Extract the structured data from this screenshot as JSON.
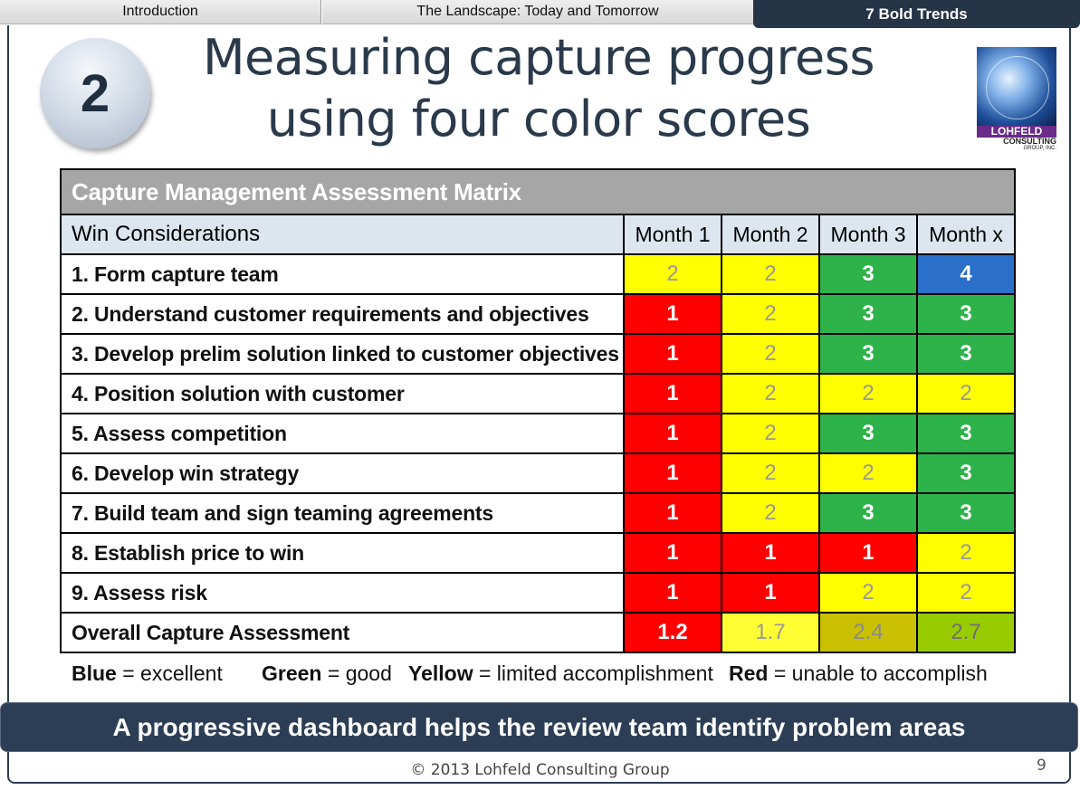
{
  "tabs": [
    {
      "label": "Introduction"
    },
    {
      "label": "The Landscape: Today and Tomorrow"
    },
    {
      "label": "7 Bold Trends"
    }
  ],
  "badge_number": "2",
  "title_line1": "Measuring capture progress",
  "title_line2": "using four color scores",
  "logo": {
    "name": "LOHFELD",
    "sub": "CONSULTING",
    "sub2": "GROUP, INC."
  },
  "matrix": {
    "title": "Capture Management Assessment Matrix",
    "header": {
      "label": "Win Considerations",
      "months": [
        "Month 1",
        "Month 2",
        "Month 3",
        "Month x"
      ]
    },
    "rows": [
      {
        "label": "1.  Form capture team",
        "scores": [
          "2",
          "2",
          "3",
          "4"
        ]
      },
      {
        "label": "2.  Understand customer requirements and objectives",
        "scores": [
          "1",
          "2",
          "3",
          "3"
        ]
      },
      {
        "label": "3.  Develop prelim solution linked to customer objectives",
        "scores": [
          "1",
          "2",
          "3",
          "3"
        ]
      },
      {
        "label": "4.  Position solution with customer",
        "scores": [
          "1",
          "2",
          "2",
          "2"
        ]
      },
      {
        "label": "5.  Assess competition",
        "scores": [
          "1",
          "2",
          "3",
          "3"
        ]
      },
      {
        "label": "6.  Develop win strategy",
        "scores": [
          "1",
          "2",
          "2",
          "3"
        ]
      },
      {
        "label": "7.  Build team and sign teaming agreements",
        "scores": [
          "1",
          "2",
          "3",
          "3"
        ]
      },
      {
        "label": "8.  Establish price to win",
        "scores": [
          "1",
          "1",
          "1",
          "2"
        ]
      },
      {
        "label": "9.  Assess risk",
        "scores": [
          "1",
          "1",
          "2",
          "2"
        ]
      }
    ],
    "overall": {
      "label": "Overall Capture Assessment",
      "scores": [
        "1.2",
        "1.7",
        "2.4",
        "2.7"
      ]
    }
  },
  "legend": [
    {
      "color": "Blue",
      "meaning": " = excellent"
    },
    {
      "color": "Green",
      "meaning": " = good"
    },
    {
      "color": "Yellow",
      "meaning": " = limited accomplishment"
    },
    {
      "color": "Red",
      "meaning": " = unable to accomplish"
    }
  ],
  "banner": "A progressive dashboard helps the review team identify problem areas",
  "footer": "© 2013 Lohfeld Consulting Group",
  "page_number": "9",
  "colors": {
    "yellow": "#ffff00",
    "green": "#2db34a",
    "blue": "#2a6fc9",
    "red": "#ff0000",
    "dark_navy": "#2c3e55"
  }
}
